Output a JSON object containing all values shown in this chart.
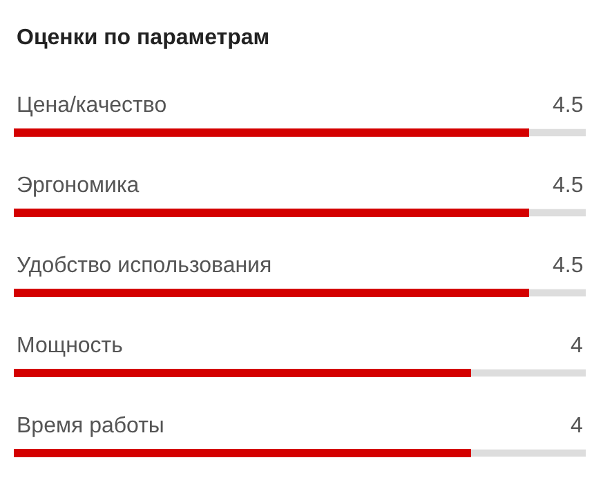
{
  "chart_data": {
    "type": "bar",
    "orientation": "horizontal",
    "title": "Оценки по параметрам",
    "categories": [
      "Цена/качество",
      "Эргономика",
      "Удобство использования",
      "Мощность",
      "Время работы"
    ],
    "values": [
      4.5,
      4.5,
      4.5,
      4,
      4
    ],
    "color": "#d40000",
    "xlim": [
      0,
      5
    ],
    "data_labels": true,
    "tick_labels": false,
    "grid": false
  }
}
